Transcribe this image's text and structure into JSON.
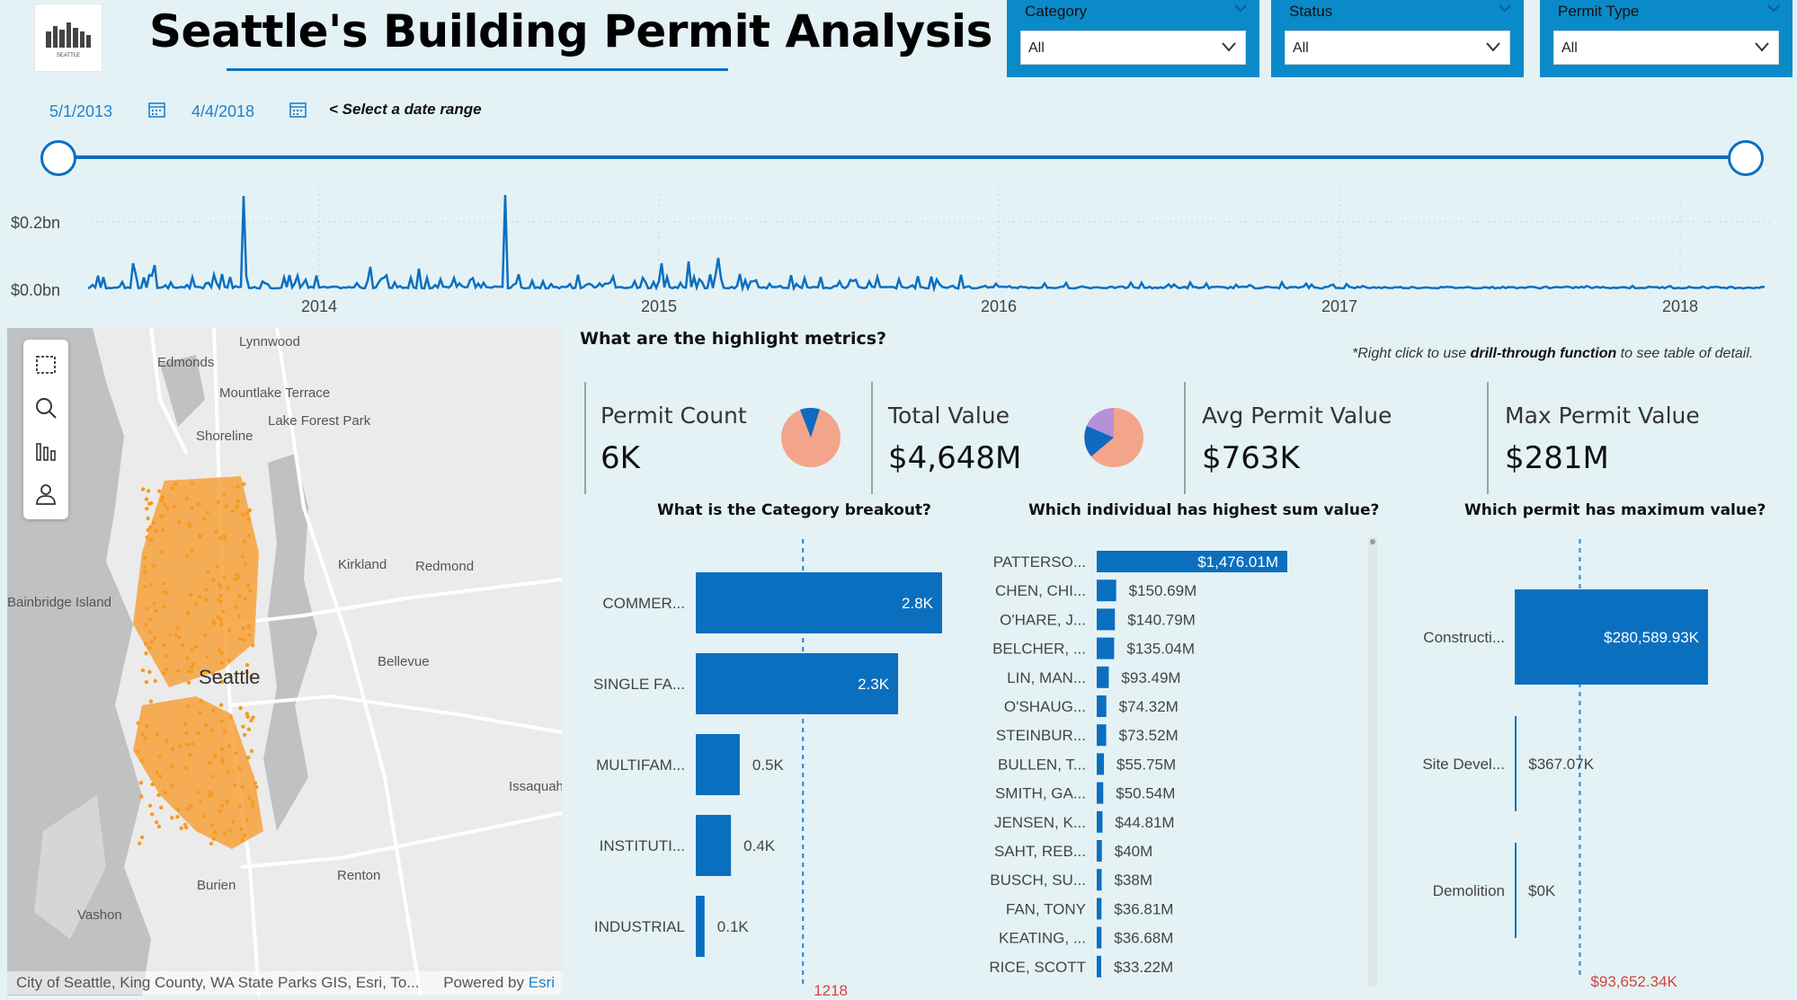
{
  "header": {
    "title": "Seattle's Building Permit Analysis",
    "logo_text": "SEATTLE"
  },
  "slicers": [
    {
      "label": "Category",
      "value": "All"
    },
    {
      "label": "Status",
      "value": "All"
    },
    {
      "label": "Permit Type",
      "value": "All"
    }
  ],
  "date_range": {
    "start": "5/1/2013",
    "end": "4/4/2018",
    "hint": "< Select a date range"
  },
  "timeline": {
    "y_ticks": [
      "$0.2bn",
      "$0.0bn"
    ],
    "x_ticks": [
      "2014",
      "2015",
      "2016",
      "2017",
      "2018"
    ]
  },
  "map": {
    "labels": [
      "Lynnwood",
      "Edmonds",
      "Mountlake Terrace",
      "Lake Forest Park",
      "Shoreline",
      "Kirkland",
      "Redmond",
      "Bainbridge Island",
      "Seattle",
      "Bellevue",
      "Issaquah",
      "Renton",
      "Burien",
      "Vashon"
    ],
    "attribution": "City of Seattle, King County, WA State Parks GIS, Esri, To...",
    "powered_by": "Powered by",
    "esri": "Esri",
    "tools": [
      "rectangle-select-icon",
      "search-icon",
      "bar-chart-icon",
      "person-icon"
    ]
  },
  "metrics": {
    "title": "What are the highlight metrics?",
    "drill_prefix": "*Right click to use ",
    "drill_bold": "drill-through function",
    "drill_suffix": " to see table of detail.",
    "kpis": [
      {
        "label": "Permit Count",
        "value": "6K"
      },
      {
        "label": "Total Value",
        "value": "$4,648M"
      },
      {
        "label": "Avg Permit Value",
        "value": "$763K"
      },
      {
        "label": "Max Permit Value",
        "value": "$281M"
      }
    ],
    "pie_colors": {
      "salmon": "#f2a58a",
      "blue": "#0e6ac0",
      "purple": "#b491d9"
    }
  },
  "chart_data": [
    {
      "type": "bar",
      "title": "What is the Category breakout?",
      "categories": [
        "COMMER...",
        "SINGLE FA...",
        "MULTIFAM...",
        "INSTITUTI...",
        "INDUSTRIAL"
      ],
      "values": [
        2800,
        2300,
        500,
        400,
        100
      ],
      "data_labels": [
        "2.8K",
        "2.3K",
        "0.5K",
        "0.4K",
        "0.1K"
      ],
      "reference_line": 1218,
      "reference_label": "1218",
      "xlim": [
        0,
        2800
      ]
    },
    {
      "type": "bar",
      "title": "Which individual has highest sum value?",
      "categories": [
        "PATTERSO...",
        "CHEN, CHI...",
        "O'HARE, J...",
        "BELCHER, ...",
        "LIN, MAN...",
        "O'SHAUG...",
        "STEINBUR...",
        "BULLEN, T...",
        "SMITH, GA...",
        "JENSEN, K...",
        "SAHT, REB...",
        "BUSCH, SU...",
        "FAN, TONY",
        "KEATING, ...",
        "RICE, SCOTT"
      ],
      "values": [
        1476.01,
        150.69,
        140.79,
        135.04,
        93.49,
        74.32,
        73.52,
        55.75,
        50.54,
        44.81,
        40,
        38,
        36.81,
        36.68,
        33.22
      ],
      "data_labels": [
        "$1,476.01M",
        "$150.69M",
        "$140.79M",
        "$135.04M",
        "$93.49M",
        "$74.32M",
        "$73.52M",
        "$55.75M",
        "$50.54M",
        "$44.81M",
        "$40M",
        "$38M",
        "$36.81M",
        "$36.68M",
        "$33.22M"
      ],
      "xlim": [
        0,
        1476.01
      ]
    },
    {
      "type": "bar",
      "title": "Which permit has maximum value?",
      "categories": [
        "Constructi...",
        "Site Devel...",
        "Demolition"
      ],
      "values": [
        280589.93,
        367.07,
        0
      ],
      "data_labels": [
        "$280,589.93K",
        "$367.07K",
        "$0K"
      ],
      "reference_line": 93652.34,
      "reference_label": "$93,652.34K",
      "xlim": [
        0,
        280589.93
      ]
    }
  ]
}
